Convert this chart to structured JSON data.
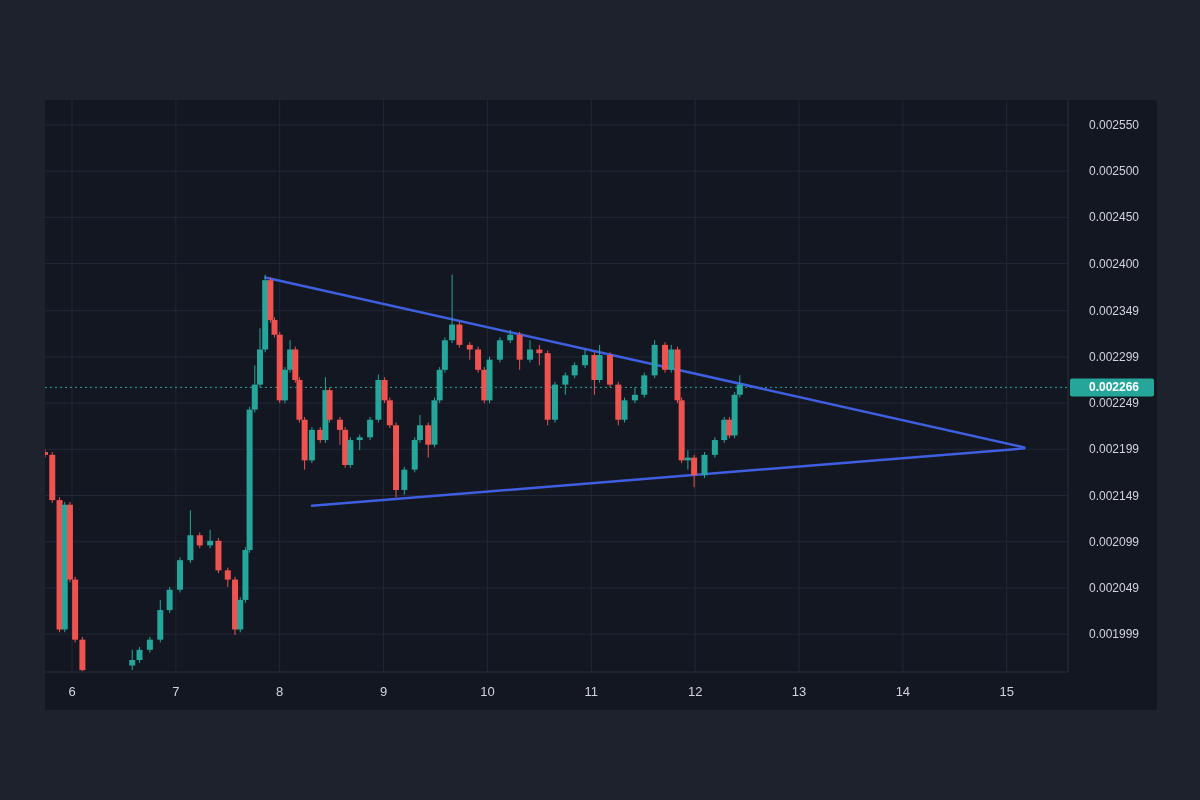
{
  "chart_data": {
    "type": "candlestick",
    "x": [
      5.74,
      5.81,
      5.88,
      5.93,
      5.98,
      6.03,
      6.1,
      6.58,
      6.65,
      6.75,
      6.85,
      6.94,
      7.04,
      7.14,
      7.23,
      7.33,
      7.41,
      7.5,
      7.57,
      7.62,
      7.67,
      7.71,
      7.76,
      7.81,
      7.86,
      7.91,
      7.95,
      8.0,
      8.05,
      8.1,
      8.15,
      8.19,
      8.24,
      8.31,
      8.39,
      8.44,
      8.48,
      8.58,
      8.63,
      8.68,
      8.77,
      8.87,
      8.95,
      9.01,
      9.06,
      9.12,
      9.2,
      9.3,
      9.35,
      9.43,
      9.49,
      9.54,
      9.59,
      9.66,
      9.73,
      9.83,
      9.91,
      9.97,
      10.02,
      10.12,
      10.22,
      10.31,
      10.41,
      10.5,
      10.58,
      10.65,
      10.75,
      10.84,
      10.94,
      11.03,
      11.08,
      11.18,
      11.26,
      11.32,
      11.42,
      11.51,
      11.61,
      11.71,
      11.77,
      11.83,
      11.87,
      11.93,
      11.99,
      12.09,
      12.19,
      12.28,
      12.33,
      12.38,
      12.43
    ],
    "ohlc": [
      [
        0.002196,
        0.002199,
        0.00219,
        0.002193
      ],
      [
        0.002193,
        0.002196,
        0.002141,
        0.002144
      ],
      [
        0.002144,
        0.002147,
        0.002001,
        0.002004
      ],
      [
        0.002004,
        0.002142,
        0.002001,
        0.002139
      ],
      [
        0.002139,
        0.002142,
        0.002055,
        0.002058
      ],
      [
        0.002058,
        0.002061,
        0.00199,
        0.001993
      ],
      [
        0.001993,
        0.001996,
        0.001959,
        0.00196
      ],
      [
        0.001965,
        0.001982,
        0.00196,
        0.001971
      ],
      [
        0.001971,
        0.001985,
        0.001968,
        0.001982
      ],
      [
        0.001982,
        0.001996,
        0.001979,
        0.001993
      ],
      [
        0.001993,
        0.002036,
        0.00199,
        0.002025
      ],
      [
        0.002025,
        0.00205,
        0.002022,
        0.002047
      ],
      [
        0.002047,
        0.002082,
        0.002044,
        0.002079
      ],
      [
        0.002079,
        0.002133,
        0.002076,
        0.002106
      ],
      [
        0.002106,
        0.002109,
        0.002092,
        0.002095
      ],
      [
        0.002095,
        0.002112,
        0.002092,
        0.0021
      ],
      [
        0.0021,
        0.002103,
        0.002065,
        0.002068
      ],
      [
        0.002068,
        0.002071,
        0.00205,
        0.002058
      ],
      [
        0.002058,
        0.002061,
        0.001998,
        0.002004
      ],
      [
        0.002004,
        0.002039,
        0.002001,
        0.002036
      ],
      [
        0.002036,
        0.002093,
        0.002033,
        0.00209
      ],
      [
        0.00209,
        0.002245,
        0.002087,
        0.002242
      ],
      [
        0.002242,
        0.00229,
        0.002239,
        0.002269
      ],
      [
        0.002269,
        0.00233,
        0.002266,
        0.002307
      ],
      [
        0.002307,
        0.002388,
        0.002304,
        0.002382
      ],
      [
        0.002382,
        0.002385,
        0.002336,
        0.002339
      ],
      [
        0.002339,
        0.002342,
        0.00232,
        0.002323
      ],
      [
        0.002323,
        0.002326,
        0.002249,
        0.002252
      ],
      [
        0.002252,
        0.002288,
        0.002249,
        0.002285
      ],
      [
        0.002285,
        0.002317,
        0.002282,
        0.002307
      ],
      [
        0.002307,
        0.00231,
        0.002271,
        0.002274
      ],
      [
        0.002274,
        0.002277,
        0.002228,
        0.002231
      ],
      [
        0.002231,
        0.002234,
        0.002177,
        0.002187
      ],
      [
        0.002187,
        0.002223,
        0.002184,
        0.00222
      ],
      [
        0.00222,
        0.002223,
        0.002206,
        0.002209
      ],
      [
        0.002209,
        0.002277,
        0.002206,
        0.002263
      ],
      [
        0.002263,
        0.002266,
        0.002228,
        0.002231
      ],
      [
        0.002231,
        0.002234,
        0.002204,
        0.00222
      ],
      [
        0.00222,
        0.002223,
        0.002179,
        0.002182
      ],
      [
        0.002182,
        0.002212,
        0.002179,
        0.002209
      ],
      [
        0.002209,
        0.002215,
        0.002198,
        0.002212
      ],
      [
        0.002212,
        0.002234,
        0.002209,
        0.002231
      ],
      [
        0.002231,
        0.00228,
        0.002228,
        0.002274
      ],
      [
        0.002274,
        0.002277,
        0.002249,
        0.002252
      ],
      [
        0.002252,
        0.002255,
        0.002222,
        0.002225
      ],
      [
        0.002225,
        0.002228,
        0.002147,
        0.002155
      ],
      [
        0.002155,
        0.00218,
        0.00215,
        0.002177
      ],
      [
        0.002177,
        0.002212,
        0.002174,
        0.002209
      ],
      [
        0.002209,
        0.002236,
        0.002206,
        0.002225
      ],
      [
        0.002225,
        0.002228,
        0.00219,
        0.002204
      ],
      [
        0.002204,
        0.002255,
        0.002201,
        0.002252
      ],
      [
        0.002252,
        0.002288,
        0.002249,
        0.002285
      ],
      [
        0.002285,
        0.00232,
        0.002282,
        0.002317
      ],
      [
        0.002317,
        0.002388,
        0.002314,
        0.002334
      ],
      [
        0.002334,
        0.002337,
        0.002309,
        0.002312
      ],
      [
        0.002312,
        0.002315,
        0.002296,
        0.002307
      ],
      [
        0.002307,
        0.00231,
        0.002282,
        0.002285
      ],
      [
        0.002285,
        0.002288,
        0.002249,
        0.002252
      ],
      [
        0.002252,
        0.002299,
        0.002249,
        0.002296
      ],
      [
        0.002296,
        0.00232,
        0.002293,
        0.002317
      ],
      [
        0.002317,
        0.002328,
        0.002314,
        0.002323
      ],
      [
        0.002323,
        0.002326,
        0.002285,
        0.002296
      ],
      [
        0.002296,
        0.002317,
        0.002293,
        0.002307
      ],
      [
        0.002307,
        0.002312,
        0.00229,
        0.002303
      ],
      [
        0.002303,
        0.002306,
        0.002225,
        0.002231
      ],
      [
        0.002231,
        0.002272,
        0.002228,
        0.002269
      ],
      [
        0.002269,
        0.002282,
        0.002258,
        0.002279
      ],
      [
        0.002279,
        0.002293,
        0.002276,
        0.00229
      ],
      [
        0.00229,
        0.002307,
        0.002287,
        0.002301
      ],
      [
        0.002301,
        0.002304,
        0.002258,
        0.002274
      ],
      [
        0.002274,
        0.002312,
        0.002271,
        0.002301
      ],
      [
        0.002301,
        0.002304,
        0.002266,
        0.002269
      ],
      [
        0.002269,
        0.002272,
        0.002225,
        0.002231
      ],
      [
        0.002231,
        0.002255,
        0.002228,
        0.002252
      ],
      [
        0.002252,
        0.002266,
        0.002249,
        0.002258
      ],
      [
        0.002258,
        0.002282,
        0.002255,
        0.002279
      ],
      [
        0.002279,
        0.002317,
        0.002276,
        0.002312
      ],
      [
        0.002312,
        0.002315,
        0.002282,
        0.002285
      ],
      [
        0.002285,
        0.002312,
        0.002282,
        0.002307
      ],
      [
        0.002307,
        0.00231,
        0.002249,
        0.002252
      ],
      [
        0.002252,
        0.002255,
        0.002184,
        0.002187
      ],
      [
        0.002187,
        0.002198,
        0.002177,
        0.00219
      ],
      [
        0.00219,
        0.002193,
        0.002158,
        0.002171
      ],
      [
        0.002171,
        0.002196,
        0.002168,
        0.002193
      ],
      [
        0.002193,
        0.002212,
        0.00219,
        0.002209
      ],
      [
        0.002209,
        0.002234,
        0.002206,
        0.002231
      ],
      [
        0.002231,
        0.002234,
        0.002211,
        0.002214
      ],
      [
        0.002214,
        0.002261,
        0.002211,
        0.002258
      ],
      [
        0.002258,
        0.002279,
        0.002255,
        0.002269
      ]
    ],
    "series": [
      {
        "type": "line",
        "color": "#3f5fe0",
        "x": [
          7.86,
          15.17
        ],
        "values": [
          0.002385,
          0.002201
        ]
      },
      {
        "type": "line",
        "color": "#3f5fe0",
        "x": [
          8.31,
          15.17
        ],
        "values": [
          0.002138,
          0.0022
        ]
      }
    ],
    "xlim": [
      5.74,
      15.59
    ],
    "xticks": [
      6,
      7,
      8,
      9,
      10,
      11,
      12,
      13,
      14,
      15
    ],
    "ylim": [
      0.001958,
      0.002577
    ],
    "yticks": [
      {
        "value": 0.001999,
        "label": "0.001999"
      },
      {
        "value": 0.002049,
        "label": "0.002049"
      },
      {
        "value": 0.002099,
        "label": "0.002099"
      },
      {
        "value": 0.002149,
        "label": "0.002149"
      },
      {
        "value": 0.002199,
        "label": "0.002199"
      },
      {
        "value": 0.002249,
        "label": "0.002249"
      },
      {
        "value": 0.002299,
        "label": "0.002299"
      },
      {
        "value": 0.002349,
        "label": "0.002349"
      },
      {
        "value": 0.0024,
        "label": "0.002400"
      },
      {
        "value": 0.00245,
        "label": "0.002450"
      },
      {
        "value": 0.0025,
        "label": "0.002500"
      },
      {
        "value": 0.00255,
        "label": "0.002550"
      }
    ],
    "ref_lines": [
      {
        "axis": "y",
        "value": 0.002266,
        "label": "0.002266",
        "color": "#26a69a",
        "line_style": "dotted"
      }
    ],
    "grid": true
  }
}
